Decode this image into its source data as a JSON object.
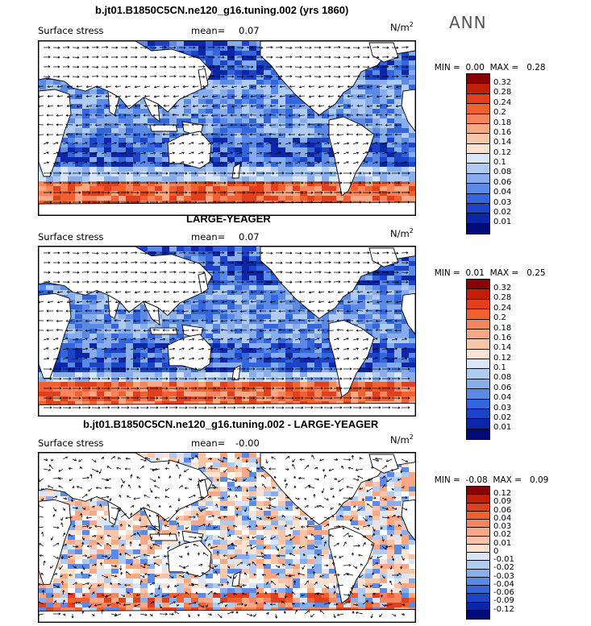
{
  "season": "ANN",
  "colors": {
    "land": "#ffffff",
    "coast": "#000000",
    "vector": "#000000"
  },
  "panels": [
    {
      "title": "b.jt01.B1850C5CN.ne120_g16.tuning.002 (yrs 1860)",
      "variable": "Surface stress",
      "mean_label": "mean=",
      "mean_value": "0.07",
      "units_base": "N/m",
      "units_exp": "2",
      "min_label": "MIN =",
      "min_value": "0.00",
      "max_label": "MAX =",
      "max_value": "0.28",
      "colorbar": {
        "labels": [
          "0.32",
          "0.28",
          "0.24",
          "0.2",
          "0.18",
          "0.16",
          "0.14",
          "0.12",
          "0.1",
          "0.08",
          "0.06",
          "0.04",
          "0.03",
          "0.02",
          "0.01"
        ],
        "colors": [
          "#8b0000",
          "#c0200a",
          "#e0401e",
          "#f26030",
          "#f6845c",
          "#f8a884",
          "#fac4a8",
          "#fde2d2",
          "#d8e6f8",
          "#b0cbf2",
          "#88aded",
          "#5a8ae6",
          "#3366dd",
          "#1c44c8",
          "#0c26a8",
          "#020a7a"
        ]
      }
    },
    {
      "title": "LARGE-YEAGER",
      "variable": "Surface stress",
      "mean_label": "mean=",
      "mean_value": "0.07",
      "units_base": "N/m",
      "units_exp": "2",
      "min_label": "MIN =",
      "min_value": "0.01",
      "max_label": "MAX =",
      "max_value": "0.25",
      "colorbar": {
        "labels": [
          "0.32",
          "0.28",
          "0.24",
          "0.2",
          "0.18",
          "0.16",
          "0.14",
          "0.12",
          "0.1",
          "0.08",
          "0.06",
          "0.04",
          "0.03",
          "0.02",
          "0.01"
        ],
        "colors": [
          "#8b0000",
          "#c0200a",
          "#e0401e",
          "#f26030",
          "#f6845c",
          "#f8a884",
          "#fac4a8",
          "#fde2d2",
          "#d8e6f8",
          "#b0cbf2",
          "#88aded",
          "#5a8ae6",
          "#3366dd",
          "#1c44c8",
          "#0c26a8",
          "#020a7a"
        ]
      }
    },
    {
      "title": "b.jt01.B1850C5CN.ne120_g16.tuning.002 - LARGE-YEAGER",
      "variable": "Surface stress",
      "mean_label": "mean=",
      "mean_value": "-0.00",
      "units_base": "N/m",
      "units_exp": "2",
      "min_label": "MIN =",
      "min_value": "-0.08",
      "max_label": "MAX =",
      "max_value": "0.09",
      "colorbar": {
        "labels": [
          "0.12",
          "0.09",
          "0.06",
          "0.04",
          "0.03",
          "0.02",
          "0.01",
          "0",
          "-0.01",
          "-0.02",
          "-0.03",
          "-0.04",
          "-0.06",
          "-0.09",
          "-0.12"
        ],
        "colors": [
          "#8b0000",
          "#c0200a",
          "#e0401e",
          "#f26030",
          "#f6845c",
          "#f8a884",
          "#fac4a8",
          "#fde2d2",
          "#d8e6f8",
          "#b0cbf2",
          "#88aded",
          "#5a8ae6",
          "#3366dd",
          "#1c44c8",
          "#0c26a8",
          "#020a7a"
        ]
      }
    }
  ]
}
